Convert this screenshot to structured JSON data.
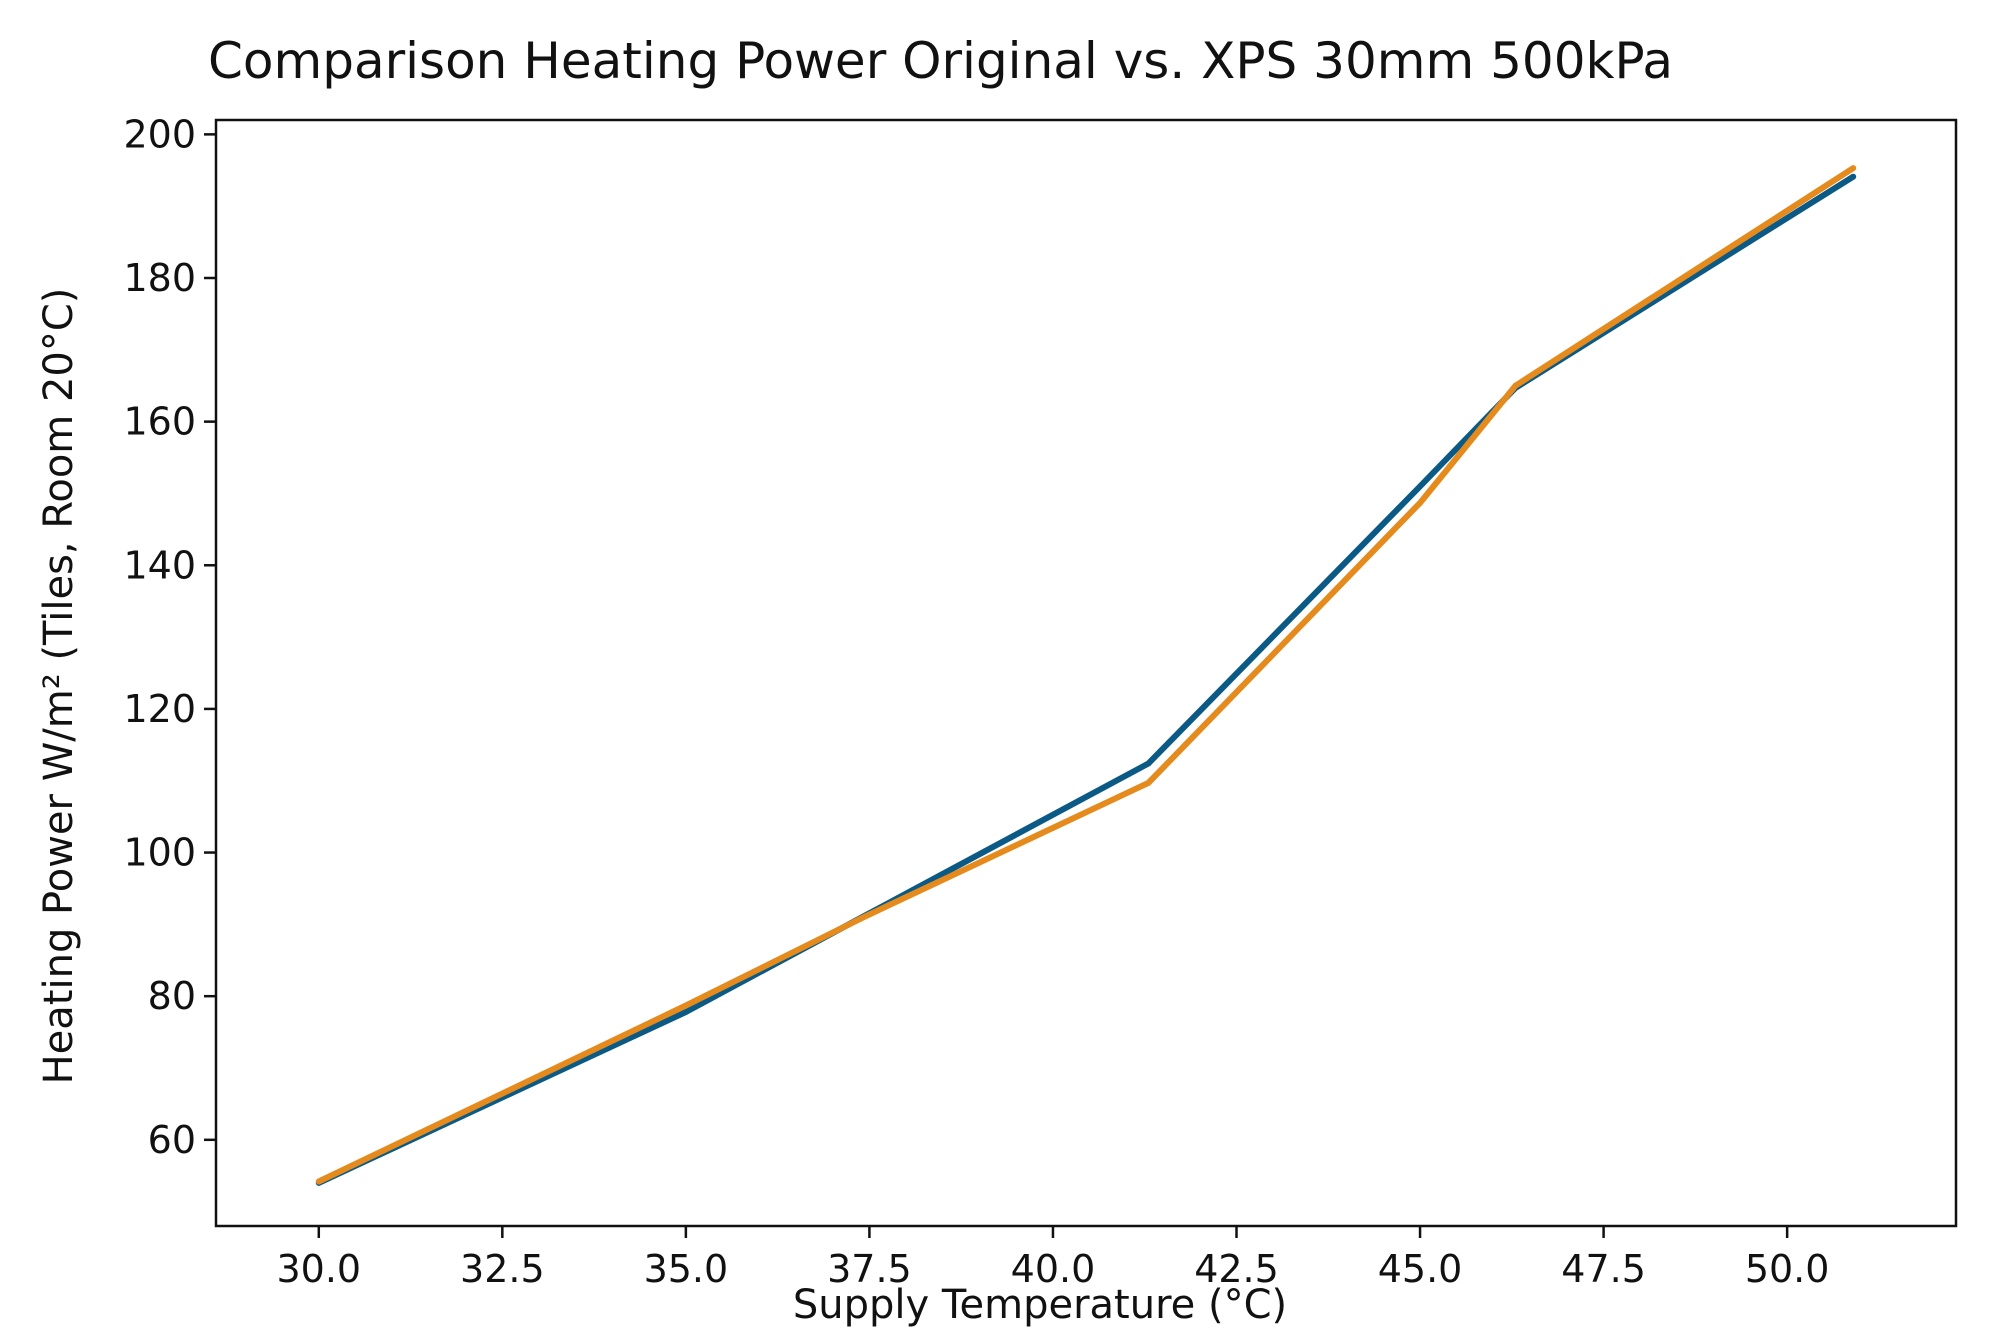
{
  "chart_data": {
    "type": "line",
    "title": "Comparison Heating Power Original vs. XPS 30mm 500kPa",
    "xlabel": "Supply Temperature (°C)",
    "ylabel": "Heating Power W/m² (Tiles, Room 20°C)",
    "xlim": [
      28.6,
      52.3
    ],
    "ylim": [
      48,
      202
    ],
    "xticks": [
      30.0,
      32.5,
      35.0,
      37.5,
      40.0,
      42.5,
      45.0,
      47.5,
      50.0
    ],
    "xtick_labels": [
      "30.0",
      "32.5",
      "35.0",
      "37.5",
      "40.0",
      "42.5",
      "45.0",
      "47.5",
      "50.0"
    ],
    "yticks": [
      60,
      80,
      100,
      120,
      140,
      160,
      180,
      200
    ],
    "ytick_labels": [
      "60",
      "80",
      "100",
      "120",
      "140",
      "160",
      "180",
      "200"
    ],
    "grid": false,
    "legend": "none",
    "series": [
      {
        "color": "#0b5a85",
        "x": [
          30.0,
          35.0,
          37.4,
          41.3,
          45.0,
          46.3,
          50.9
        ],
        "y": [
          54.0,
          77.8,
          91.0,
          112.4,
          151.0,
          164.7,
          194.1
        ]
      },
      {
        "color": "#e58a1c",
        "x": [
          30.0,
          35.0,
          37.4,
          41.3,
          45.0,
          46.3,
          50.9
        ],
        "y": [
          54.2,
          78.7,
          90.9,
          109.7,
          148.7,
          165.0,
          195.3
        ]
      }
    ]
  }
}
